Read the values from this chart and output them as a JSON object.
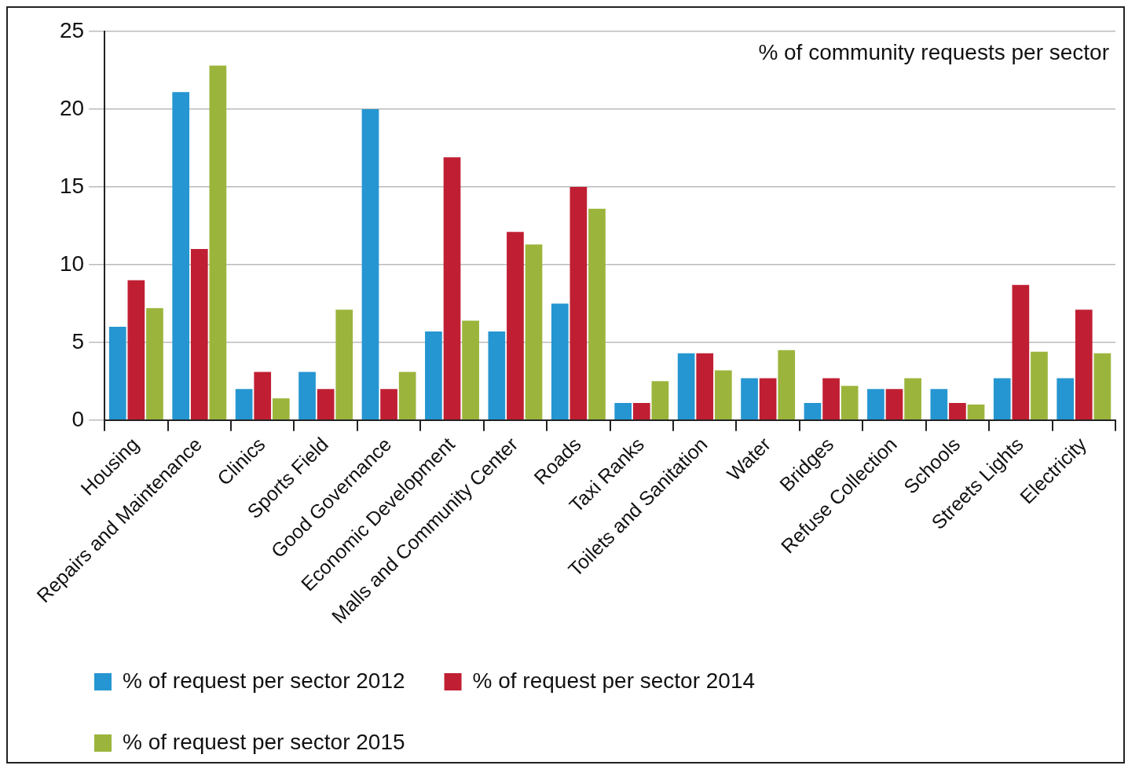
{
  "chart_data": {
    "type": "bar",
    "title": "% of community requests per sector",
    "categories": [
      "Housing",
      "Repairs and Maintenance",
      "Clinics",
      "Sports Field",
      "Good Governance",
      "Economic Development",
      "Malls and Community Center",
      "Roads",
      "Taxi Ranks",
      "Toilets and Sanitation",
      "Water",
      "Bridges",
      "Refuse Collection",
      "Schools",
      "Streets Lights",
      "Electricity"
    ],
    "series": [
      {
        "name": "% of request per sector 2012",
        "color": "#2596d1",
        "values": [
          6,
          21.1,
          2,
          3.1,
          20,
          5.7,
          5.7,
          7.5,
          1.1,
          4.3,
          2.7,
          1.1,
          2,
          2,
          2.7,
          2.7
        ]
      },
      {
        "name": "% of request per sector 2014",
        "color": "#c01f33",
        "values": [
          9,
          11,
          3.1,
          2,
          2,
          16.9,
          12.1,
          15,
          1.1,
          4.3,
          2.7,
          2.7,
          2,
          1.1,
          8.7,
          7.1
        ]
      },
      {
        "name": "% of request per sector 2015",
        "color": "#9bb53c",
        "values": [
          7.2,
          22.8,
          1.4,
          7.1,
          3.1,
          6.4,
          11.3,
          13.6,
          2.5,
          3.2,
          4.5,
          2.2,
          2.7,
          1,
          4.4,
          4.3
        ]
      }
    ],
    "ylim": [
      0,
      25
    ],
    "yticks": [
      0,
      5,
      10,
      15,
      20,
      25
    ],
    "grid": "y",
    "legend": "bottom"
  }
}
